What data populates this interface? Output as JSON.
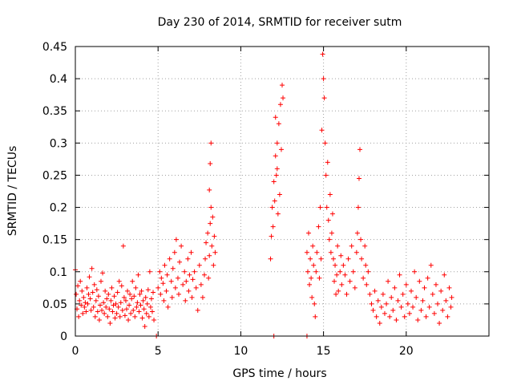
{
  "chart_data": {
    "type": "scatter",
    "title": "Day 230 of 2014, SRMTID for receiver sutm",
    "xlabel": "GPS time / hours",
    "ylabel": "SRMTID / TECUs",
    "xlim": [
      0,
      25
    ],
    "ylim": [
      0,
      0.45
    ],
    "xticks": [
      0,
      5,
      10,
      15,
      20
    ],
    "xtick_labels": [
      "0",
      "5",
      "10",
      "15",
      "20"
    ],
    "yticks": [
      0,
      0.05,
      0.1,
      0.15,
      0.2,
      0.25,
      0.3,
      0.35,
      0.4,
      0.45
    ],
    "ytick_labels": [
      "0",
      "0.05",
      "0.1",
      "0.15",
      "0.2",
      "0.25",
      "0.3",
      "0.35",
      "0.4",
      "0.45"
    ],
    "grid": true,
    "marker": "+",
    "series": [
      {
        "name": "SRMTID",
        "color": "#ff0000",
        "points": [
          [
            0.0,
            0.103
          ],
          [
            0.05,
            0.065
          ],
          [
            0.1,
            0.042
          ],
          [
            0.15,
            0.078
          ],
          [
            0.2,
            0.03
          ],
          [
            0.25,
            0.055
          ],
          [
            0.3,
            0.085
          ],
          [
            0.35,
            0.048
          ],
          [
            0.4,
            0.07
          ],
          [
            0.45,
            0.035
          ],
          [
            0.5,
            0.06
          ],
          [
            0.55,
            0.045
          ],
          [
            0.6,
            0.052
          ],
          [
            0.65,
            0.038
          ],
          [
            0.7,
            0.075
          ],
          [
            0.75,
            0.05
          ],
          [
            0.8,
            0.065
          ],
          [
            0.85,
            0.092
          ],
          [
            0.9,
            0.058
          ],
          [
            0.95,
            0.04
          ],
          [
            1.0,
            0.105
          ],
          [
            1.05,
            0.068
          ],
          [
            1.1,
            0.045
          ],
          [
            1.15,
            0.08
          ],
          [
            1.2,
            0.03
          ],
          [
            1.25,
            0.055
          ],
          [
            1.3,
            0.072
          ],
          [
            1.35,
            0.038
          ],
          [
            1.4,
            0.062
          ],
          [
            1.45,
            0.025
          ],
          [
            1.5,
            0.048
          ],
          [
            1.55,
            0.085
          ],
          [
            1.6,
            0.04
          ],
          [
            1.65,
            0.098
          ],
          [
            1.7,
            0.052
          ],
          [
            1.75,
            0.035
          ],
          [
            1.8,
            0.07
          ],
          [
            1.85,
            0.045
          ],
          [
            1.9,
            0.058
          ],
          [
            1.95,
            0.03
          ],
          [
            2.0,
            0.065
          ],
          [
            2.05,
            0.042
          ],
          [
            2.1,
            0.02
          ],
          [
            2.15,
            0.055
          ],
          [
            2.2,
            0.075
          ],
          [
            2.25,
            0.038
          ],
          [
            2.3,
            0.048
          ],
          [
            2.35,
            0.062
          ],
          [
            2.4,
            0.028
          ],
          [
            2.45,
            0.05
          ],
          [
            2.5,
            0.035
          ],
          [
            2.55,
            0.068
          ],
          [
            2.6,
            0.045
          ],
          [
            2.65,
            0.085
          ],
          [
            2.7,
            0.03
          ],
          [
            2.75,
            0.052
          ],
          [
            2.8,
            0.078
          ],
          [
            2.85,
            0.04
          ],
          [
            2.9,
            0.14
          ],
          [
            2.95,
            0.06
          ],
          [
            3.0,
            0.032
          ],
          [
            3.05,
            0.055
          ],
          [
            3.1,
            0.042
          ],
          [
            3.15,
            0.07
          ],
          [
            3.2,
            0.025
          ],
          [
            3.25,
            0.048
          ],
          [
            3.3,
            0.065
          ],
          [
            3.35,
            0.035
          ],
          [
            3.4,
            0.058
          ],
          [
            3.45,
            0.085
          ],
          [
            3.5,
            0.04
          ],
          [
            3.55,
            0.062
          ],
          [
            3.6,
            0.03
          ],
          [
            3.65,
            0.075
          ],
          [
            3.7,
            0.045
          ],
          [
            3.75,
            0.052
          ],
          [
            3.8,
            0.095
          ],
          [
            3.85,
            0.038
          ],
          [
            3.9,
            0.065
          ],
          [
            3.95,
            0.048
          ],
          [
            4.0,
            0.07
          ],
          [
            4.05,
            0.028
          ],
          [
            4.1,
            0.055
          ],
          [
            4.15,
            0.042
          ],
          [
            4.2,
            0.015
          ],
          [
            4.25,
            0.06
          ],
          [
            4.3,
            0.035
          ],
          [
            4.35,
            0.05
          ],
          [
            4.4,
            0.072
          ],
          [
            4.45,
            0.03
          ],
          [
            4.5,
            0.1
          ],
          [
            4.55,
            0.045
          ],
          [
            4.6,
            0.058
          ],
          [
            4.65,
            0.038
          ],
          [
            4.7,
            0.068
          ],
          [
            4.75,
            0.025
          ],
          [
            4.9,
            0.0
          ],
          [
            12.0,
            0.0
          ],
          [
            14.0,
            0.0
          ],
          [
            5.0,
            0.075
          ],
          [
            5.1,
            0.1
          ],
          [
            5.15,
            0.065
          ],
          [
            5.2,
            0.09
          ],
          [
            5.3,
            0.082
          ],
          [
            5.35,
            0.055
          ],
          [
            5.4,
            0.11
          ],
          [
            5.5,
            0.07
          ],
          [
            5.55,
            0.095
          ],
          [
            5.6,
            0.045
          ],
          [
            5.7,
            0.12
          ],
          [
            5.8,
            0.085
          ],
          [
            5.85,
            0.06
          ],
          [
            5.9,
            0.105
          ],
          [
            6.0,
            0.13
          ],
          [
            6.05,
            0.075
          ],
          [
            6.1,
            0.15
          ],
          [
            6.2,
            0.09
          ],
          [
            6.25,
            0.065
          ],
          [
            6.3,
            0.115
          ],
          [
            6.4,
            0.14
          ],
          [
            6.5,
            0.08
          ],
          [
            6.6,
            0.1
          ],
          [
            6.65,
            0.055
          ],
          [
            6.7,
            0.085
          ],
          [
            6.8,
            0.12
          ],
          [
            6.85,
            0.07
          ],
          [
            6.9,
            0.095
          ],
          [
            7.0,
            0.13
          ],
          [
            7.05,
            0.06
          ],
          [
            7.1,
            0.088
          ],
          [
            7.2,
            0.1
          ],
          [
            7.3,
            0.075
          ],
          [
            7.4,
            0.04
          ],
          [
            7.5,
            0.11
          ],
          [
            7.6,
            0.08
          ],
          [
            7.7,
            0.06
          ],
          [
            7.8,
            0.095
          ],
          [
            7.85,
            0.12
          ],
          [
            7.9,
            0.145
          ],
          [
            8.0,
            0.16
          ],
          [
            8.05,
            0.09
          ],
          [
            8.1,
            0.125
          ],
          [
            8.15,
            0.175
          ],
          [
            8.2,
            0.2
          ],
          [
            8.25,
            0.14
          ],
          [
            8.3,
            0.185
          ],
          [
            8.35,
            0.11
          ],
          [
            8.4,
            0.155
          ],
          [
            8.45,
            0.13
          ],
          [
            8.1,
            0.227
          ],
          [
            8.15,
            0.268
          ],
          [
            8.2,
            0.3
          ],
          [
            11.8,
            0.12
          ],
          [
            11.85,
            0.155
          ],
          [
            11.9,
            0.2
          ],
          [
            11.95,
            0.17
          ],
          [
            12.0,
            0.24
          ],
          [
            12.05,
            0.21
          ],
          [
            12.1,
            0.28
          ],
          [
            12.15,
            0.25
          ],
          [
            12.2,
            0.3
          ],
          [
            12.25,
            0.19
          ],
          [
            12.3,
            0.33
          ],
          [
            12.35,
            0.22
          ],
          [
            12.4,
            0.36
          ],
          [
            12.45,
            0.29
          ],
          [
            12.5,
            0.39
          ],
          [
            12.55,
            0.37
          ],
          [
            12.1,
            0.34
          ],
          [
            12.2,
            0.26
          ],
          [
            14.0,
            0.13
          ],
          [
            14.05,
            0.1
          ],
          [
            14.1,
            0.16
          ],
          [
            14.15,
            0.08
          ],
          [
            14.2,
            0.12
          ],
          [
            14.25,
            0.09
          ],
          [
            14.3,
            0.06
          ],
          [
            14.35,
            0.14
          ],
          [
            14.4,
            0.11
          ],
          [
            14.45,
            0.05
          ],
          [
            14.5,
            0.03
          ],
          [
            14.55,
            0.1
          ],
          [
            14.6,
            0.13
          ],
          [
            14.7,
            0.17
          ],
          [
            14.75,
            0.09
          ],
          [
            14.8,
            0.2
          ],
          [
            14.85,
            0.12
          ],
          [
            14.9,
            0.32
          ],
          [
            14.95,
            0.438
          ],
          [
            15.0,
            0.4
          ],
          [
            15.05,
            0.37
          ],
          [
            15.1,
            0.3
          ],
          [
            15.15,
            0.25
          ],
          [
            15.2,
            0.2
          ],
          [
            15.25,
            0.27
          ],
          [
            15.3,
            0.18
          ],
          [
            15.35,
            0.15
          ],
          [
            15.4,
            0.22
          ],
          [
            15.45,
            0.13
          ],
          [
            15.5,
            0.16
          ],
          [
            15.55,
            0.19
          ],
          [
            15.6,
            0.12
          ],
          [
            15.65,
            0.085
          ],
          [
            15.7,
            0.11
          ],
          [
            15.75,
            0.065
          ],
          [
            15.8,
            0.095
          ],
          [
            15.85,
            0.14
          ],
          [
            15.9,
            0.07
          ],
          [
            16.0,
            0.1
          ],
          [
            16.05,
            0.125
          ],
          [
            16.1,
            0.08
          ],
          [
            16.2,
            0.11
          ],
          [
            16.3,
            0.095
          ],
          [
            16.4,
            0.065
          ],
          [
            16.5,
            0.12
          ],
          [
            16.6,
            0.085
          ],
          [
            16.7,
            0.14
          ],
          [
            16.8,
            0.1
          ],
          [
            16.9,
            0.075
          ],
          [
            17.0,
            0.13
          ],
          [
            17.05,
            0.16
          ],
          [
            17.1,
            0.2
          ],
          [
            17.15,
            0.245
          ],
          [
            17.2,
            0.29
          ],
          [
            17.25,
            0.15
          ],
          [
            17.3,
            0.12
          ],
          [
            17.4,
            0.09
          ],
          [
            17.5,
            0.14
          ],
          [
            17.55,
            0.11
          ],
          [
            17.6,
            0.08
          ],
          [
            17.7,
            0.1
          ],
          [
            17.8,
            0.065
          ],
          [
            17.9,
            0.05
          ],
          [
            18.0,
            0.04
          ],
          [
            18.1,
            0.07
          ],
          [
            18.2,
            0.03
          ],
          [
            18.3,
            0.055
          ],
          [
            18.4,
            0.02
          ],
          [
            18.5,
            0.045
          ],
          [
            18.6,
            0.065
          ],
          [
            18.7,
            0.035
          ],
          [
            18.8,
            0.05
          ],
          [
            18.9,
            0.085
          ],
          [
            19.0,
            0.03
          ],
          [
            19.1,
            0.06
          ],
          [
            19.2,
            0.04
          ],
          [
            19.3,
            0.075
          ],
          [
            19.4,
            0.025
          ],
          [
            19.5,
            0.055
          ],
          [
            19.6,
            0.095
          ],
          [
            19.7,
            0.045
          ],
          [
            19.8,
            0.065
          ],
          [
            19.9,
            0.03
          ],
          [
            20.0,
            0.08
          ],
          [
            20.1,
            0.05
          ],
          [
            20.2,
            0.035
          ],
          [
            20.3,
            0.07
          ],
          [
            20.4,
            0.045
          ],
          [
            20.5,
            0.1
          ],
          [
            20.6,
            0.06
          ],
          [
            20.7,
            0.025
          ],
          [
            20.8,
            0.085
          ],
          [
            20.9,
            0.04
          ],
          [
            21.0,
            0.055
          ],
          [
            21.1,
            0.075
          ],
          [
            21.2,
            0.03
          ],
          [
            21.3,
            0.09
          ],
          [
            21.4,
            0.045
          ],
          [
            21.5,
            0.11
          ],
          [
            21.6,
            0.065
          ],
          [
            21.7,
            0.035
          ],
          [
            21.8,
            0.08
          ],
          [
            21.9,
            0.05
          ],
          [
            22.0,
            0.02
          ],
          [
            22.1,
            0.07
          ],
          [
            22.2,
            0.04
          ],
          [
            22.3,
            0.095
          ],
          [
            22.4,
            0.055
          ],
          [
            22.5,
            0.03
          ],
          [
            22.6,
            0.075
          ],
          [
            22.7,
            0.045
          ],
          [
            22.75,
            0.06
          ]
        ]
      }
    ]
  }
}
